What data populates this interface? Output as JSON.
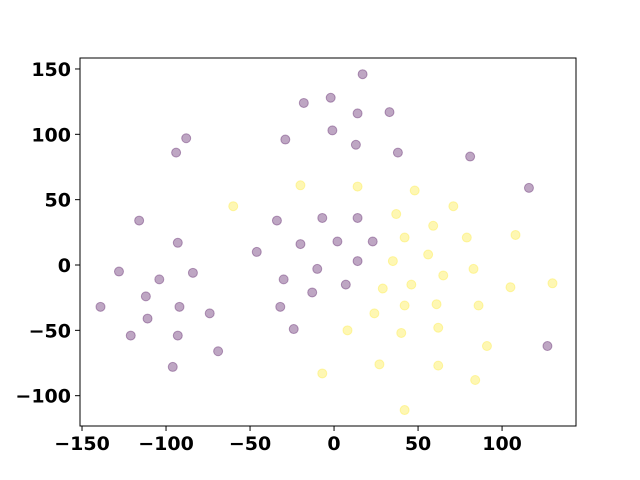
{
  "chart_data": {
    "type": "scatter",
    "xlim": [
      -151.2,
      144.0
    ],
    "ylim": [
      -123.2,
      158.4
    ],
    "xticks": [
      {
        "value": -150,
        "label": "−150"
      },
      {
        "value": -100,
        "label": "−100"
      },
      {
        "value": -50,
        "label": "−50"
      },
      0,
      50,
      100
    ],
    "yticks": [
      {
        "value": -100,
        "label": "−100"
      },
      {
        "value": -50,
        "label": "−50"
      },
      0,
      50,
      100,
      150
    ],
    "grid": false,
    "series": [
      {
        "color": "#440154",
        "x": [
          17,
          -18,
          -2,
          33,
          14,
          -88,
          -94,
          -29,
          -1,
          13,
          38,
          81,
          116,
          -116,
          -34,
          -7,
          14,
          -93,
          -20,
          2,
          23,
          -46,
          14,
          -128,
          -104,
          -84,
          -10,
          -30,
          7,
          -112,
          -13,
          -139,
          -92,
          -32,
          -111,
          -74,
          -121,
          -93,
          -24,
          -69,
          127,
          -96
        ],
        "values": [
          146,
          124,
          128,
          117,
          116,
          97,
          86,
          96,
          103,
          92,
          86,
          83,
          59,
          34,
          34,
          36,
          36,
          17,
          16,
          18,
          18,
          10,
          3,
          -5,
          -11,
          -6,
          -3,
          -11,
          -15,
          -24,
          -21,
          -32,
          -32,
          -32,
          -41,
          -37,
          -54,
          -54,
          -49,
          -66,
          -62,
          -78
        ]
      },
      {
        "color": "#fde725",
        "x": [
          -60,
          -20,
          14,
          48,
          71,
          37,
          59,
          108,
          42,
          79,
          56,
          35,
          65,
          83,
          130,
          46,
          29,
          105,
          42,
          61,
          86,
          24,
          62,
          8,
          40,
          91,
          27,
          62,
          -7,
          84,
          42
        ],
        "values": [
          45,
          61,
          60,
          57,
          45,
          39,
          30,
          23,
          21,
          21,
          8,
          3,
          -8,
          -3,
          -14,
          -15,
          -18,
          -17,
          -31,
          -30,
          -31,
          -37,
          -48,
          -50,
          -52,
          -62,
          -76,
          -77,
          -83,
          -88,
          -111
        ]
      }
    ]
  }
}
